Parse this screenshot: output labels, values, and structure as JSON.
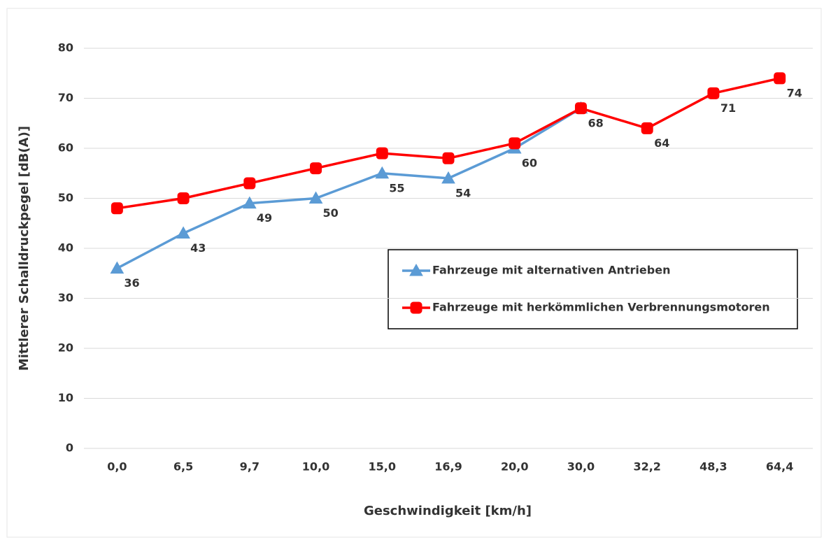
{
  "chart_data": {
    "type": "line",
    "x_label": "Geschwindigkeit [km/h]",
    "y_label": "Mittlerer Schalldruckpegel [dB(A)]",
    "categories": [
      "0,0",
      "6,5",
      "9,7",
      "10,0",
      "15,0",
      "16,9",
      "20,0",
      "30,0",
      "32,2",
      "48,3",
      "64,4"
    ],
    "series": [
      {
        "name": "Fahrzeuge mit alternativen Antrieben",
        "color": "#5b9bd5",
        "marker": "triangle",
        "values": [
          36,
          43,
          49,
          50,
          55,
          54,
          60,
          68,
          null,
          null,
          null
        ],
        "value_labels": [
          "36",
          "43",
          "49",
          "50",
          "55",
          "54",
          "60",
          null,
          null,
          null,
          null
        ]
      },
      {
        "name": "Fahrzeuge mit herkömmlichen Verbrennungsmotoren",
        "color": "#ff0000",
        "marker": "square",
        "values": [
          48,
          50,
          53,
          56,
          59,
          58,
          61,
          68,
          64,
          71,
          74
        ],
        "value_labels": [
          null,
          null,
          null,
          null,
          null,
          null,
          null,
          "68",
          "64",
          "71",
          "74"
        ]
      }
    ],
    "ylim": [
      0,
      80
    ],
    "yticks": [
      0,
      10,
      20,
      30,
      40,
      50,
      60,
      70,
      80
    ],
    "grid": true
  }
}
